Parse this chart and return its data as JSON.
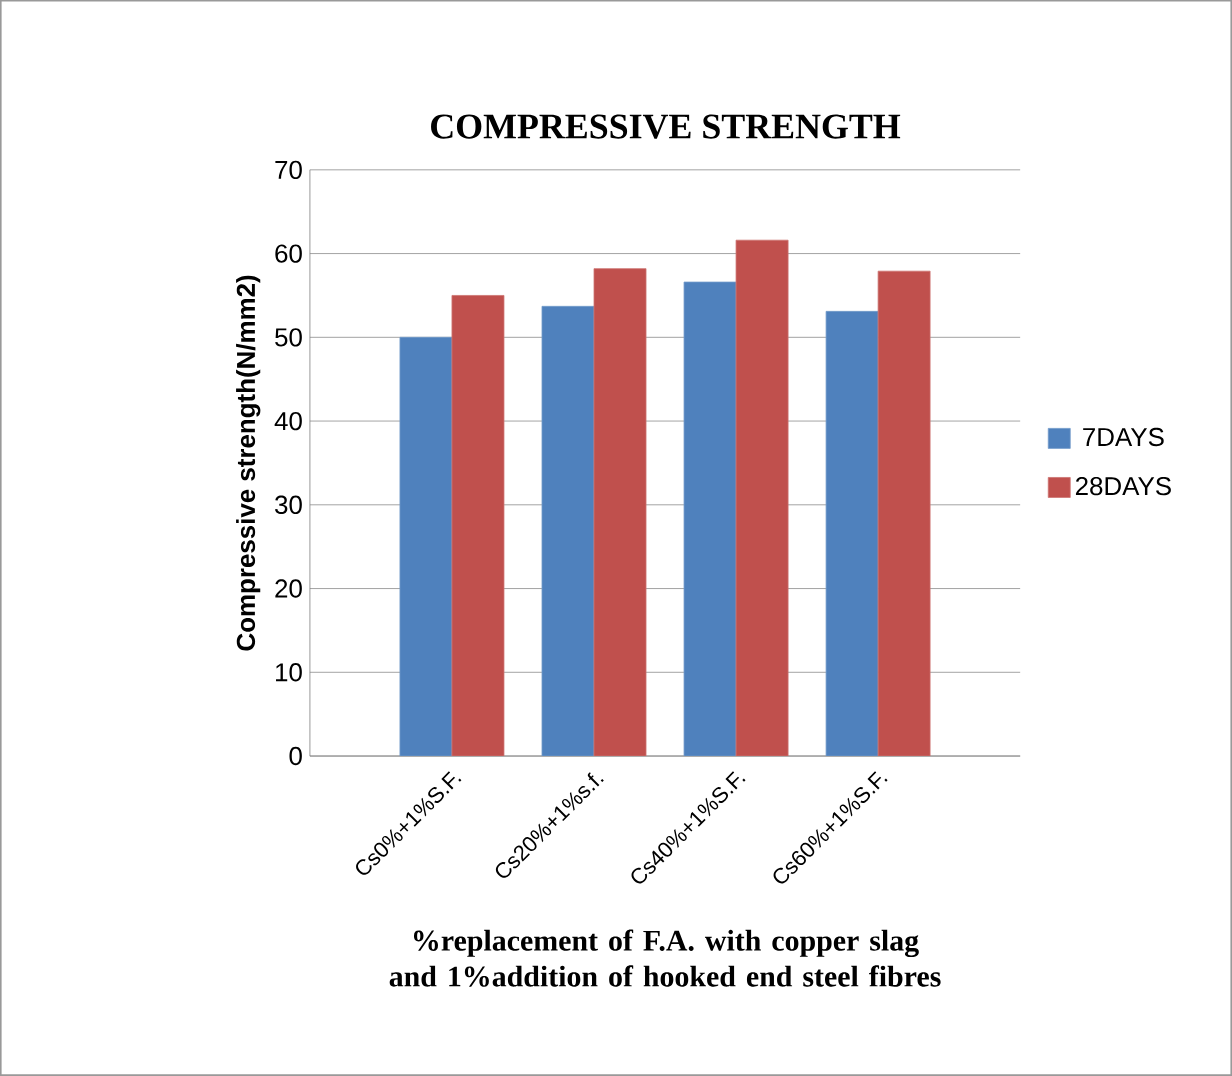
{
  "chart_data": {
    "type": "bar",
    "title": "COMPRESSIVE STRENGTH",
    "xlabel": "%replacement of F.A. with copper slag and 1%addition of hooked end steel fibres",
    "ylabel": "Compressive strength(N/mm2)",
    "categories": [
      "Cs0%+1%S.F.",
      "Cs20%+1%s.f.",
      "Cs40%+1%S.F.",
      "Cs60%+1%S.F."
    ],
    "series": [
      {
        "name": "7DAYS",
        "color": "#4f81bd",
        "values": [
          50.0,
          53.7,
          56.6,
          53.1
        ]
      },
      {
        "name": "28DAYS",
        "color": "#c0504d",
        "values": [
          55.0,
          58.2,
          61.6,
          57.9
        ]
      }
    ],
    "ylim": [
      0,
      70
    ],
    "yticks": [
      0,
      10,
      20,
      30,
      40,
      50,
      60,
      70
    ],
    "grid": "y",
    "legend": "right"
  }
}
